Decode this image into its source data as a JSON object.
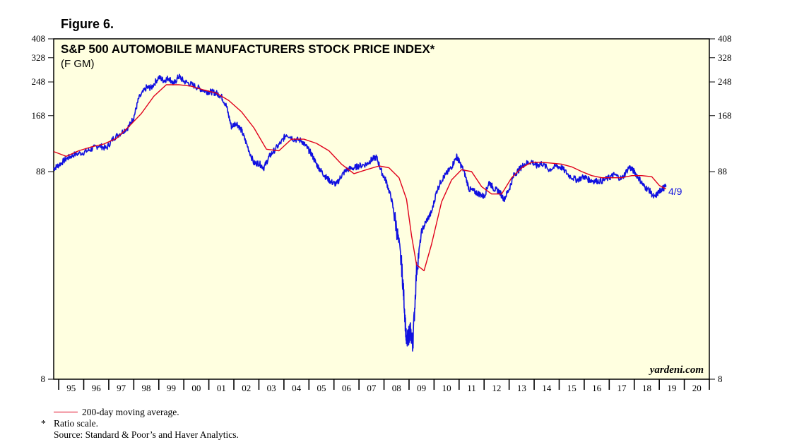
{
  "figure_label": "Figure 6.",
  "chart_data": {
    "type": "line",
    "title": "S&P 500 AUTOMOBILE MANUFACTURERS STOCK PRICE INDEX*",
    "subtitle": "(F GM)",
    "scale": "log",
    "ylim": [
      8,
      408
    ],
    "y_ticks": [
      408,
      328,
      248,
      168,
      88,
      8
    ],
    "x_range": [
      1994.8,
      2021.0
    ],
    "x_tick_labels": [
      "95",
      "96",
      "97",
      "98",
      "99",
      "00",
      "01",
      "02",
      "03",
      "04",
      "05",
      "06",
      "07",
      "08",
      "09",
      "10",
      "11",
      "12",
      "13",
      "14",
      "15",
      "16",
      "17",
      "18",
      "19",
      "20"
    ],
    "x_tick_years": [
      1995,
      1996,
      1997,
      1998,
      1999,
      2000,
      2001,
      2002,
      2003,
      2004,
      2005,
      2006,
      2007,
      2008,
      2009,
      2010,
      2011,
      2012,
      2013,
      2014,
      2015,
      2016,
      2017,
      2018,
      2019,
      2020
    ],
    "end_label": "4/9",
    "watermark": "yardeni.com",
    "series": [
      {
        "name": "S&P 500 Automobile Manufacturers Stock Price Index",
        "color": "#1010e0",
        "x": [
          1994.8,
          1995.0,
          1995.3,
          1995.6,
          1996.0,
          1996.3,
          1996.6,
          1996.9,
          1997.2,
          1997.5,
          1997.8,
          1998.0,
          1998.2,
          1998.5,
          1998.7,
          1999.0,
          1999.2,
          1999.4,
          1999.6,
          1999.8,
          2000.0,
          2000.3,
          2000.6,
          2000.9,
          2001.1,
          2001.3,
          2001.5,
          2001.7,
          2001.9,
          2002.1,
          2002.3,
          2002.5,
          2002.8,
          2003.0,
          2003.2,
          2003.4,
          2003.6,
          2003.9,
          2004.1,
          2004.4,
          2004.7,
          2004.9,
          2005.1,
          2005.3,
          2005.5,
          2005.7,
          2005.9,
          2006.1,
          2006.3,
          2006.5,
          2006.8,
          2007.0,
          2007.3,
          2007.5,
          2007.7,
          2007.9,
          2008.1,
          2008.3,
          2008.5,
          2008.7,
          2008.8,
          2008.9,
          2009.0,
          2009.05,
          2009.15,
          2009.3,
          2009.5,
          2009.7,
          2009.9,
          2010.1,
          2010.3,
          2010.5,
          2010.7,
          2010.9,
          2011.0,
          2011.2,
          2011.4,
          2011.6,
          2011.8,
          2012.0,
          2012.2,
          2012.4,
          2012.6,
          2012.8,
          2013.0,
          2013.2,
          2013.4,
          2013.6,
          2013.9,
          2014.1,
          2014.3,
          2014.6,
          2014.9,
          2015.1,
          2015.4,
          2015.7,
          2016.0,
          2016.2,
          2016.4,
          2016.7,
          2017.0,
          2017.2,
          2017.5,
          2017.8,
          2018.0,
          2018.2,
          2018.4,
          2018.6,
          2018.8,
          2019.0,
          2019.1,
          2019.27
        ],
        "values": [
          91,
          95,
          102,
          107,
          110,
          114,
          119,
          115,
          130,
          138,
          148,
          165,
          205,
          232,
          232,
          262,
          252,
          260,
          242,
          265,
          250,
          241,
          231,
          222,
          221,
          218,
          210,
          188,
          148,
          155,
          142,
          122,
          97,
          97,
          92,
          104,
          112,
          124,
          136,
          128,
          126,
          117,
          108,
          96,
          88,
          82,
          78,
          76,
          84,
          90,
          92,
          94,
          96,
          101,
          104,
          88,
          78,
          64,
          46,
          30,
          20,
          12,
          13.5,
          14,
          12,
          28,
          44,
          50,
          55,
          70,
          80,
          86,
          93,
          105,
          99,
          88,
          72,
          70,
          68,
          66,
          78,
          72,
          70,
          64,
          72,
          85,
          90,
          96,
          99,
          94,
          97,
          90,
          94,
          92,
          84,
          80,
          83,
          80,
          79,
          79,
          82,
          85,
          81,
          93,
          88,
          81,
          74,
          71,
          65,
          70,
          72,
          74
        ]
      },
      {
        "name": "200-day moving average.",
        "color": "#e0001b",
        "x": [
          1994.8,
          1995.3,
          1995.8,
          1996.3,
          1996.8,
          1997.3,
          1997.8,
          1998.3,
          1998.8,
          1999.3,
          1999.8,
          2000.3,
          2000.8,
          2001.3,
          2001.8,
          2002.3,
          2002.8,
          2003.3,
          2003.8,
          2004.3,
          2004.8,
          2005.3,
          2005.8,
          2006.3,
          2006.8,
          2007.3,
          2007.8,
          2008.2,
          2008.6,
          2008.9,
          2009.1,
          2009.3,
          2009.6,
          2009.9,
          2010.3,
          2010.7,
          2011.1,
          2011.5,
          2011.9,
          2012.3,
          2012.7,
          2013.1,
          2013.5,
          2013.9,
          2014.3,
          2014.7,
          2015.1,
          2015.5,
          2015.9,
          2016.3,
          2016.7,
          2017.1,
          2017.5,
          2017.9,
          2018.3,
          2018.7,
          2019.0,
          2019.27
        ],
        "values": [
          111,
          105,
          112,
          117,
          121,
          129,
          148,
          172,
          210,
          240,
          240,
          236,
          226,
          218,
          200,
          176,
          146,
          114,
          112,
          128,
          128,
          122,
          112,
          96,
          86,
          90,
          94,
          92,
          82,
          64,
          42,
          30,
          28,
          38,
          62,
          80,
          90,
          88,
          74,
          68,
          68,
          82,
          92,
          98,
          98,
          97,
          96,
          93,
          88,
          84,
          82,
          82,
          82,
          84,
          84,
          83,
          75,
          72
        ]
      }
    ],
    "legend": [
      "200-day moving average."
    ],
    "notes": {
      "star": "*",
      "ratio": "Ratio scale.",
      "source": "Source: Standard & Poor’s and Haver Analytics."
    }
  }
}
